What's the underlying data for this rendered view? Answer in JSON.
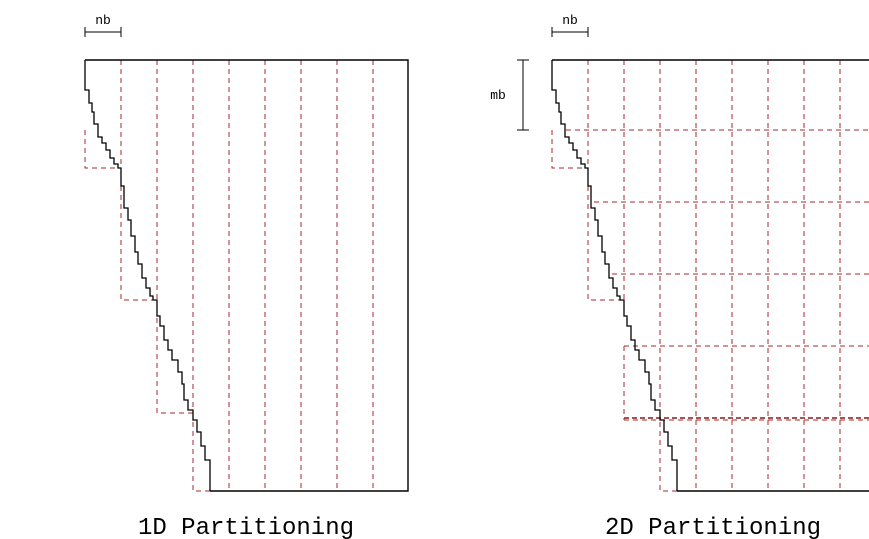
{
  "left_panel": {
    "nb_label": "nb",
    "caption": "1D Partitioning"
  },
  "right_panel": {
    "nb_label": "nb",
    "mb_label": "mb",
    "caption": "2D Partitioning"
  }
}
